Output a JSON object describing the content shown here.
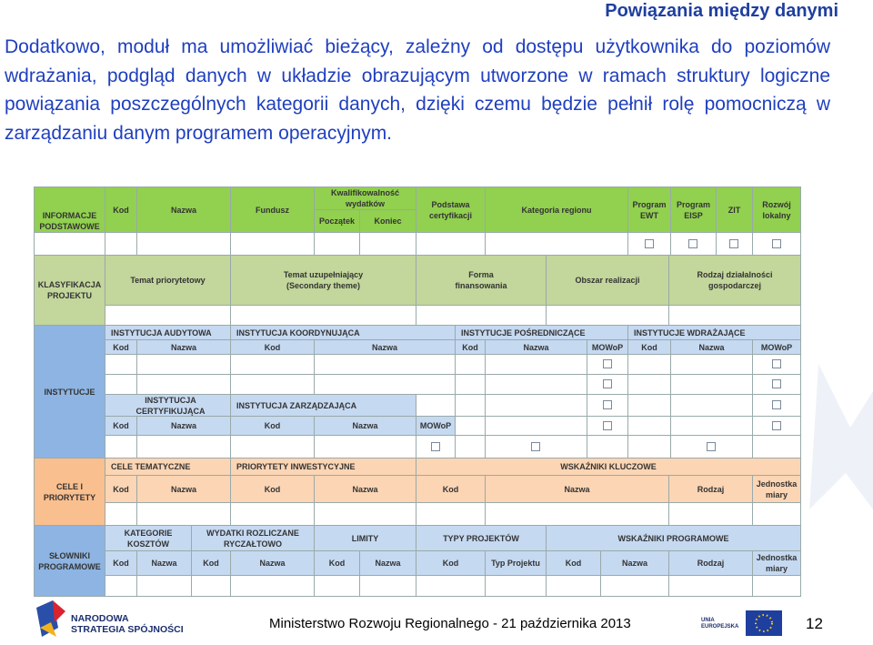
{
  "header": {
    "title": "Powiązania między danymi"
  },
  "intro": "Dodatkowo, moduł ma umożliwiać bieżący, zależny od dostępu użytkownika do poziomów wdrażania, podgląd danych w układzie obrazującym utworzone w ramach struktury logiczne powiązania poszczególnych kategorii danych, dzięki czemu będzie pełnił rolę pomocniczą w zarządzaniu danym programem operacyjnym.",
  "sections": [
    {
      "label": "INFORMACJE\nPODSTAWOWE",
      "cells": [
        "Kod",
        "Nazwa",
        "Fundusz",
        "Kwalifikowalność\nwydatków",
        "Początek",
        "Koniec",
        "Podstawa\ncertyfikacji",
        "Kategoria regionu",
        "Program\nEWT",
        "Program\nEISP",
        "ZIT",
        "Rozwój\nlokalny"
      ]
    },
    {
      "label": "KLASYFIKACJA\nPROJEKTU",
      "cells": [
        "Temat priorytetowy",
        "Temat uzupełniający\n(Secondary theme)",
        "Forma\nfinansowania",
        "Obszar realizacji",
        "Rodzaj działalności\ngospodarczej"
      ]
    },
    {
      "label": "INSTYTUCJE",
      "cells": [
        "INSTYTUCJA AUDYTOWA",
        "INSTYTUCJA KOORDYNUJĄCA",
        "INSTYTUCJE POŚREDNICZĄCE",
        "INSTYTUCJE WDRAŻAJĄCE",
        "Kod",
        "Nazwa",
        "Kod",
        "Nazwa",
        "Kod",
        "Nazwa",
        "MOWoP",
        "Kod",
        "Nazwa",
        "MOWoP",
        "INSTYTUCJA CERTYFIKUJĄCA",
        "INSTYTUCJA ZARZĄDZAJĄCA",
        "Kod",
        "Nazwa",
        "Kod",
        "Nazwa",
        "MOWoP"
      ]
    },
    {
      "label": "CELE I\nPRIORYTETY",
      "cells": [
        "CELE TEMATYCZNE",
        "PRIORYTETY INWESTYCYJNE",
        "WSKAŹNIKI KLUCZOWE",
        "Kod",
        "Nazwa",
        "Kod",
        "Nazwa",
        "Kod",
        "Nazwa",
        "Rodzaj",
        "Jednostka\nmiary"
      ]
    },
    {
      "label": "SŁOWNIKI\nPROGRAMOWE",
      "cells": [
        "KATEGORIE\nKOSZTÓW",
        "WYDATKI ROZLICZANE\nRYCZAŁTOWO",
        "LIMITY",
        "TYPY PROJEKTÓW",
        "WSKAŹNIKI PROGRAMOWE",
        "Kod",
        "Nazwa",
        "Kod",
        "Nazwa",
        "Kod",
        "Nazwa",
        "Kod",
        "Typ Projektu",
        "Kod",
        "Nazwa",
        "Rodzaj",
        "Jednostka\nmiary"
      ]
    }
  ],
  "footer": {
    "logo": "NARODOWA\nSTRATEGIA SPÓJNOŚCI",
    "text": "Ministerstwo Rozwoju Regionalnego - 21 października 2013",
    "eu": "UNIA\nEUROPEJSKA",
    "page": "12"
  }
}
